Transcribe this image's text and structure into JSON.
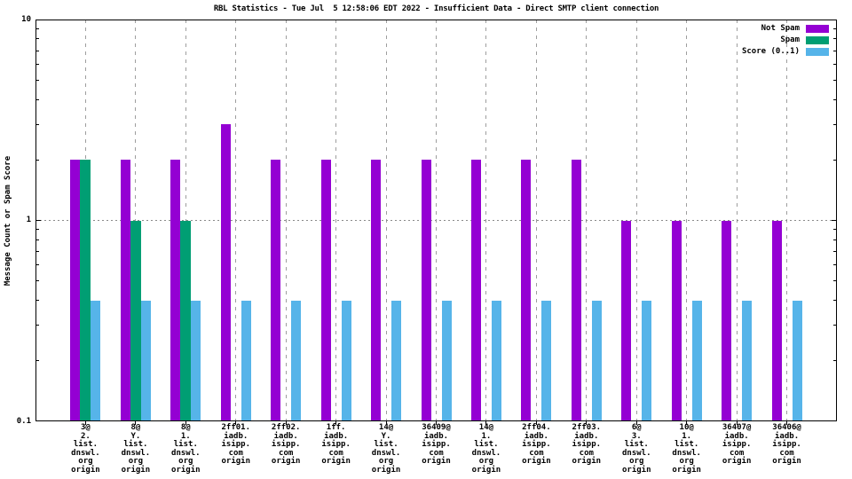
{
  "chart_data": {
    "type": "bar",
    "title": "RBL Statistics - Tue Jul  5 12:58:06 EDT 2022 - Insufficient Data - Direct SMTP client connection",
    "ylabel": "Message Count or Spam Score",
    "yscale": "log",
    "ylim": [
      0.1,
      10
    ],
    "yticks": [
      "10",
      "1",
      "0.1"
    ],
    "grid": {
      "vertical": "dashed line at each category center",
      "horizontal": "dotted line at y=1"
    },
    "legend_position": "top-right-inside",
    "legend": [
      {
        "label": "Not Spam",
        "color": "#9400d3"
      },
      {
        "label": "Spam",
        "color": "#009e73"
      },
      {
        "label": "Score (0..1)",
        "color": "#56b4e9"
      }
    ],
    "categories": [
      [
        "3@",
        "2.",
        "list.",
        "dnswl.",
        "org",
        "origin"
      ],
      [
        "8@",
        "Y.",
        "list.",
        "dnswl.",
        "org",
        "origin"
      ],
      [
        "8@",
        "1.",
        "list.",
        "dnswl.",
        "org",
        "origin"
      ],
      [
        "2ff01.",
        "iadb.",
        "isipp.",
        "com",
        "origin"
      ],
      [
        "2ff02.",
        "iadb.",
        "isipp.",
        "com",
        "origin"
      ],
      [
        "1ff.",
        "iadb.",
        "isipp.",
        "com",
        "origin"
      ],
      [
        "14@",
        "Y.",
        "list.",
        "dnswl.",
        "org",
        "origin"
      ],
      [
        "36409@",
        "iadb.",
        "isipp.",
        "com",
        "origin"
      ],
      [
        "14@",
        "1.",
        "list.",
        "dnswl.",
        "org",
        "origin"
      ],
      [
        "2ff04.",
        "iadb.",
        "isipp.",
        "com",
        "origin"
      ],
      [
        "2ff03.",
        "iadb.",
        "isipp.",
        "com",
        "origin"
      ],
      [
        "6@",
        "3.",
        "list.",
        "dnswl.",
        "org",
        "origin"
      ],
      [
        "10@",
        "1.",
        "list.",
        "dnswl.",
        "org",
        "origin"
      ],
      [
        "36407@",
        "iadb.",
        "isipp.",
        "com",
        "origin"
      ],
      [
        "36406@",
        "iadb.",
        "isipp.",
        "com",
        "origin"
      ]
    ],
    "series": [
      {
        "name": "Not Spam",
        "color": "#9400d3",
        "values": [
          2,
          2,
          2,
          3,
          2,
          2,
          2,
          2,
          2,
          2,
          2,
          1,
          1,
          1,
          1
        ]
      },
      {
        "name": "Spam",
        "color": "#009e73",
        "values": [
          2,
          1,
          1,
          null,
          null,
          null,
          null,
          null,
          null,
          null,
          null,
          null,
          null,
          null,
          null
        ]
      },
      {
        "name": "Score (0..1)",
        "color": "#56b4e9",
        "values": [
          0.4,
          0.4,
          0.4,
          0.4,
          0.4,
          0.4,
          0.4,
          0.4,
          0.4,
          0.4,
          0.4,
          0.4,
          0.4,
          0.4,
          0.4
        ]
      }
    ],
    "colors": {
      "axis": "#000000",
      "grid": "#999999",
      "background": "#ffffff"
    }
  }
}
